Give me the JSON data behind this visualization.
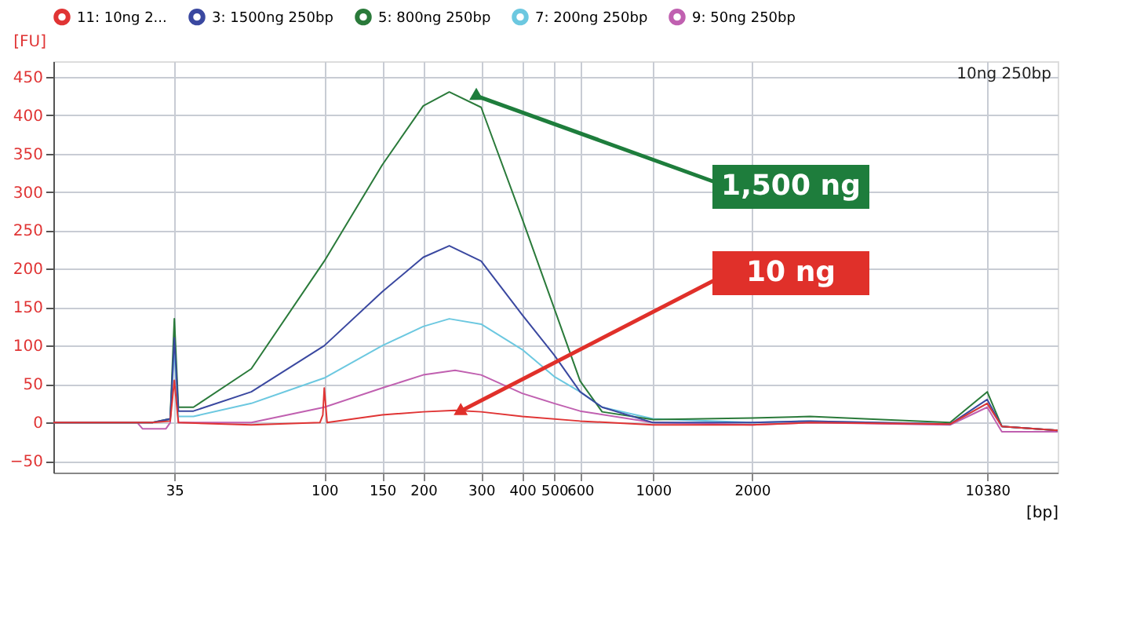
{
  "chart_data": {
    "type": "line",
    "xlabel": "[bp]",
    "ylabel": "[FU]",
    "xlim": [
      15,
      17000
    ],
    "ylim": [
      -65,
      470
    ],
    "log": "x",
    "xticks": [
      35,
      100,
      150,
      200,
      300,
      400,
      500,
      600,
      1000,
      2000,
      10380
    ],
    "yticks": [
      -50,
      0,
      50,
      100,
      150,
      200,
      250,
      300,
      350,
      400,
      450
    ],
    "grid": true,
    "legend": "top",
    "marker": "none",
    "line_style": "solid",
    "series": [
      {
        "name": "11: 10ng 2...",
        "color": "#e03434",
        "x": [
          15,
          30,
          34,
          35,
          36,
          60,
          97,
          99,
          100,
          102,
          150,
          200,
          250,
          300,
          400,
          600,
          1000,
          2000,
          3000,
          8000,
          10380,
          11500,
          17000
        ],
        "values": [
          0,
          0,
          2,
          55,
          0,
          -3,
          0,
          10,
          45,
          0,
          10,
          14,
          16,
          14,
          8,
          2,
          -3,
          -3,
          0,
          -2,
          25,
          -5,
          -10
        ]
      },
      {
        "name": "3: 1500ng 250bp",
        "color": "#3a48a0",
        "x": [
          15,
          30,
          34,
          35,
          36,
          40,
          60,
          100,
          150,
          200,
          240,
          300,
          400,
          500,
          600,
          700,
          1000,
          2000,
          3000,
          8000,
          10380,
          11500,
          17000
        ],
        "values": [
          0,
          0,
          5,
          110,
          15,
          15,
          40,
          100,
          170,
          215,
          230,
          210,
          140,
          88,
          40,
          20,
          0,
          0,
          2,
          -2,
          30,
          -5,
          -10
        ]
      },
      {
        "name": "5: 800ng 250bp",
        "color": "#2a7a3a",
        "x": [
          15,
          30,
          34,
          35,
          36,
          40,
          60,
          100,
          150,
          200,
          240,
          300,
          400,
          500,
          600,
          700,
          1000,
          2000,
          3000,
          8000,
          10380,
          11500,
          17000
        ],
        "values": [
          0,
          0,
          5,
          135,
          20,
          20,
          70,
          210,
          335,
          412,
          430,
          410,
          265,
          149,
          54,
          14,
          4,
          6,
          8,
          0,
          40,
          -5,
          -10
        ]
      },
      {
        "name": "7: 200ng 250bp",
        "color": "#6cc8e0",
        "x": [
          15,
          30,
          34,
          35,
          36,
          40,
          60,
          100,
          150,
          200,
          240,
          300,
          400,
          500,
          600,
          700,
          1000,
          2000,
          3000,
          8000,
          10380,
          11500,
          17000
        ],
        "values": [
          0,
          0,
          4,
          95,
          8,
          8,
          25,
          58,
          100,
          125,
          135,
          128,
          95,
          60,
          40,
          20,
          5,
          0,
          2,
          -2,
          25,
          -5,
          -10
        ]
      },
      {
        "name": "9: 50ng 250bp",
        "color": "#c060b0",
        "x": [
          15,
          27,
          28,
          33,
          34,
          35,
          36,
          60,
          100,
          150,
          200,
          250,
          300,
          400,
          500,
          600,
          1000,
          2000,
          3000,
          8000,
          10380,
          11500,
          17000
        ],
        "values": [
          0,
          0,
          -8,
          -8,
          0,
          110,
          0,
          0,
          20,
          45,
          62,
          68,
          62,
          38,
          25,
          15,
          0,
          -3,
          0,
          -3,
          20,
          -12,
          -12
        ]
      }
    ],
    "annotations": [
      {
        "text": "1,500 ng",
        "x": 290,
        "y": 425
      },
      {
        "text": "10 ng",
        "x": 260,
        "y": 15
      },
      "10ng 250bp"
    ]
  }
}
